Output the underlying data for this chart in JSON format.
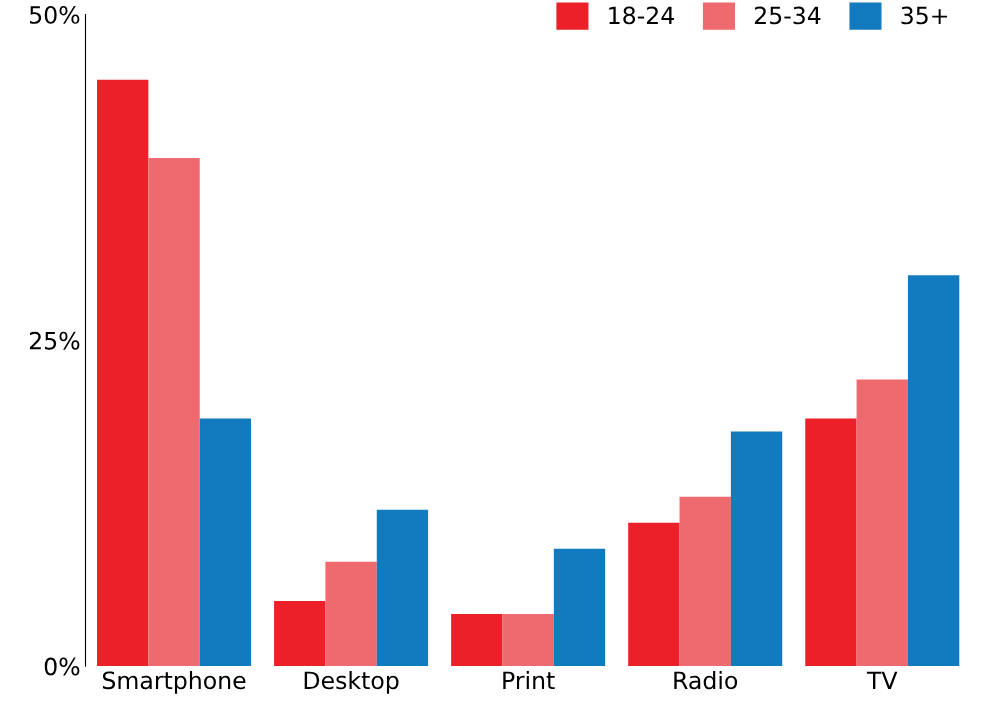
{
  "chart_data": {
    "type": "bar",
    "categories": [
      "Smartphone",
      "Desktop",
      "Print",
      "Radio",
      "TV"
    ],
    "series": [
      {
        "name": "18-24",
        "color": "#ec2028",
        "values": [
          45,
          5,
          4,
          11,
          19
        ]
      },
      {
        "name": "25-34",
        "color": "#ef6a6e",
        "values": [
          39,
          8,
          4,
          13,
          22
        ]
      },
      {
        "name": "35+",
        "color": "#127bbf",
        "values": [
          19,
          12,
          9,
          18,
          30
        ]
      }
    ],
    "ylim": [
      0,
      50
    ],
    "yticks": [
      {
        "value": 0,
        "label": "0%"
      },
      {
        "value": 25,
        "label": "25%"
      },
      {
        "value": 50,
        "label": "50%"
      }
    ],
    "grid": false,
    "legend": "top right"
  }
}
